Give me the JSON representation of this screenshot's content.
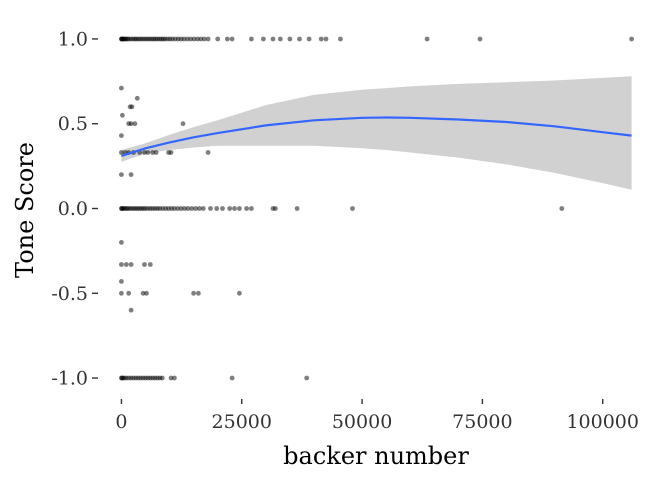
{
  "chart_data": {
    "type": "scatter",
    "title": "",
    "xlabel": "backer number",
    "ylabel": "Tone Score",
    "xlim": [
      -3000,
      106500
    ],
    "ylim": [
      -1.1,
      1.1
    ],
    "grid": false,
    "legend": "none",
    "colors": {
      "points": "#000000",
      "trend_line": "#3366FF",
      "confidence_band": "#CCCCCC"
    },
    "x_ticks": [
      {
        "value": 0,
        "label": "0"
      },
      {
        "value": 25000,
        "label": "25000"
      },
      {
        "value": 50000,
        "label": "50000"
      },
      {
        "value": 75000,
        "label": "75000"
      },
      {
        "value": 100000,
        "label": "100000"
      }
    ],
    "y_ticks": [
      {
        "value": 1.0,
        "label": "1.0"
      },
      {
        "value": 0.5,
        "label": "0.5"
      },
      {
        "value": 0.0,
        "label": "0.0"
      },
      {
        "value": -0.5,
        "label": "-0.5"
      },
      {
        "value": -1.0,
        "label": "-1.0"
      }
    ],
    "points": [
      [
        0,
        1
      ],
      [
        40,
        1
      ],
      [
        120,
        1
      ],
      [
        250,
        1
      ],
      [
        400,
        1
      ],
      [
        600,
        1
      ],
      [
        800,
        1
      ],
      [
        1000,
        1
      ],
      [
        1300,
        1
      ],
      [
        1600,
        1
      ],
      [
        2000,
        1
      ],
      [
        2400,
        1
      ],
      [
        2800,
        1
      ],
      [
        3100,
        1
      ],
      [
        3500,
        1
      ],
      [
        3900,
        1
      ],
      [
        4300,
        1
      ],
      [
        4700,
        1
      ],
      [
        5100,
        1
      ],
      [
        5500,
        1
      ],
      [
        5900,
        1
      ],
      [
        6300,
        1
      ],
      [
        6700,
        1
      ],
      [
        7100,
        1
      ],
      [
        7500,
        1
      ],
      [
        7900,
        1
      ],
      [
        8300,
        1
      ],
      [
        8700,
        1
      ],
      [
        9100,
        1
      ],
      [
        9600,
        1
      ],
      [
        10100,
        1
      ],
      [
        10600,
        1
      ],
      [
        11200,
        1
      ],
      [
        11800,
        1
      ],
      [
        12400,
        1
      ],
      [
        13000,
        1
      ],
      [
        13700,
        1
      ],
      [
        14400,
        1
      ],
      [
        15100,
        1
      ],
      [
        15800,
        1
      ],
      [
        16500,
        1
      ],
      [
        17200,
        1
      ],
      [
        18000,
        1
      ],
      [
        20000,
        1
      ],
      [
        22000,
        1
      ],
      [
        23000,
        1
      ],
      [
        27000,
        1
      ],
      [
        29500,
        1
      ],
      [
        31500,
        1
      ],
      [
        33000,
        1
      ],
      [
        35000,
        1
      ],
      [
        37000,
        1
      ],
      [
        39000,
        1
      ],
      [
        41500,
        1
      ],
      [
        42500,
        1
      ],
      [
        45500,
        1
      ],
      [
        63500,
        1
      ],
      [
        74500,
        1
      ],
      [
        106000,
        1
      ],
      [
        0,
        0.71
      ],
      [
        1800,
        0.6
      ],
      [
        2200,
        0.6
      ],
      [
        200,
        0.55
      ],
      [
        3300,
        0.65
      ],
      [
        12800,
        0.5
      ],
      [
        1500,
        0.5
      ],
      [
        2800,
        0.5
      ],
      [
        2000,
        0.5
      ],
      [
        0,
        0.43
      ],
      [
        0,
        0.33
      ],
      [
        800,
        0.33
      ],
      [
        1500,
        0.33
      ],
      [
        2500,
        0.33
      ],
      [
        3800,
        0.33
      ],
      [
        4800,
        0.33
      ],
      [
        5500,
        0.33
      ],
      [
        6500,
        0.33
      ],
      [
        7200,
        0.33
      ],
      [
        9800,
        0.33
      ],
      [
        10300,
        0.33
      ],
      [
        18000,
        0.33
      ],
      [
        0,
        0.2
      ],
      [
        2000,
        0.2
      ],
      [
        0,
        0
      ],
      [
        80,
        0
      ],
      [
        250,
        0
      ],
      [
        500,
        0
      ],
      [
        800,
        0
      ],
      [
        1100,
        0
      ],
      [
        1400,
        0
      ],
      [
        1800,
        0
      ],
      [
        2200,
        0
      ],
      [
        2600,
        0
      ],
      [
        3000,
        0
      ],
      [
        3400,
        0
      ],
      [
        3800,
        0
      ],
      [
        4200,
        0
      ],
      [
        4600,
        0
      ],
      [
        5000,
        0
      ],
      [
        5500,
        0
      ],
      [
        6000,
        0
      ],
      [
        6500,
        0
      ],
      [
        7000,
        0
      ],
      [
        7500,
        0
      ],
      [
        8000,
        0
      ],
      [
        8600,
        0
      ],
      [
        9200,
        0
      ],
      [
        9800,
        0
      ],
      [
        10400,
        0
      ],
      [
        11000,
        0
      ],
      [
        11700,
        0
      ],
      [
        12400,
        0
      ],
      [
        13100,
        0
      ],
      [
        13800,
        0
      ],
      [
        14600,
        0
      ],
      [
        15400,
        0
      ],
      [
        16200,
        0
      ],
      [
        17000,
        0
      ],
      [
        18500,
        0
      ],
      [
        19800,
        0
      ],
      [
        21000,
        0
      ],
      [
        22500,
        0
      ],
      [
        23500,
        0
      ],
      [
        24500,
        0
      ],
      [
        26000,
        0
      ],
      [
        27000,
        0
      ],
      [
        31500,
        0
      ],
      [
        32000,
        0
      ],
      [
        36500,
        0
      ],
      [
        48000,
        0
      ],
      [
        91500,
        0
      ],
      [
        0,
        -0.2
      ],
      [
        0,
        -0.33
      ],
      [
        1000,
        -0.33
      ],
      [
        2000,
        -0.33
      ],
      [
        4800,
        -0.33
      ],
      [
        6000,
        -0.33
      ],
      [
        0,
        -0.43
      ],
      [
        0,
        -0.5
      ],
      [
        1500,
        -0.5
      ],
      [
        4500,
        -0.5
      ],
      [
        5200,
        -0.5
      ],
      [
        15000,
        -0.5
      ],
      [
        16000,
        -0.5
      ],
      [
        24500,
        -0.5
      ],
      [
        2000,
        -0.6
      ],
      [
        0,
        -1
      ],
      [
        100,
        -1
      ],
      [
        300,
        -1
      ],
      [
        600,
        -1
      ],
      [
        1000,
        -1
      ],
      [
        1500,
        -1
      ],
      [
        2000,
        -1
      ],
      [
        2500,
        -1
      ],
      [
        3000,
        -1
      ],
      [
        3500,
        -1
      ],
      [
        4000,
        -1
      ],
      [
        4500,
        -1
      ],
      [
        5000,
        -1
      ],
      [
        5500,
        -1
      ],
      [
        6000,
        -1
      ],
      [
        6500,
        -1
      ],
      [
        7000,
        -1
      ],
      [
        7500,
        -1
      ],
      [
        8000,
        -1
      ],
      [
        8500,
        -1
      ],
      [
        10300,
        -1
      ],
      [
        11000,
        -1
      ],
      [
        23000,
        -1
      ],
      [
        38500,
        -1
      ]
    ],
    "trend": {
      "x": [
        0,
        5000,
        10000,
        15000,
        20000,
        30000,
        40000,
        50000,
        55000,
        60000,
        70000,
        80000,
        90000,
        100000,
        106000
      ],
      "y": [
        0.31,
        0.355,
        0.39,
        0.42,
        0.445,
        0.49,
        0.52,
        0.535,
        0.537,
        0.535,
        0.525,
        0.51,
        0.485,
        0.45,
        0.43
      ],
      "lower": [
        0.275,
        0.325,
        0.345,
        0.36,
        0.37,
        0.37,
        0.37,
        0.355,
        0.345,
        0.33,
        0.3,
        0.26,
        0.21,
        0.15,
        0.11
      ],
      "upper": [
        0.345,
        0.385,
        0.435,
        0.48,
        0.52,
        0.61,
        0.67,
        0.7,
        0.71,
        0.72,
        0.735,
        0.745,
        0.755,
        0.77,
        0.78
      ]
    }
  }
}
